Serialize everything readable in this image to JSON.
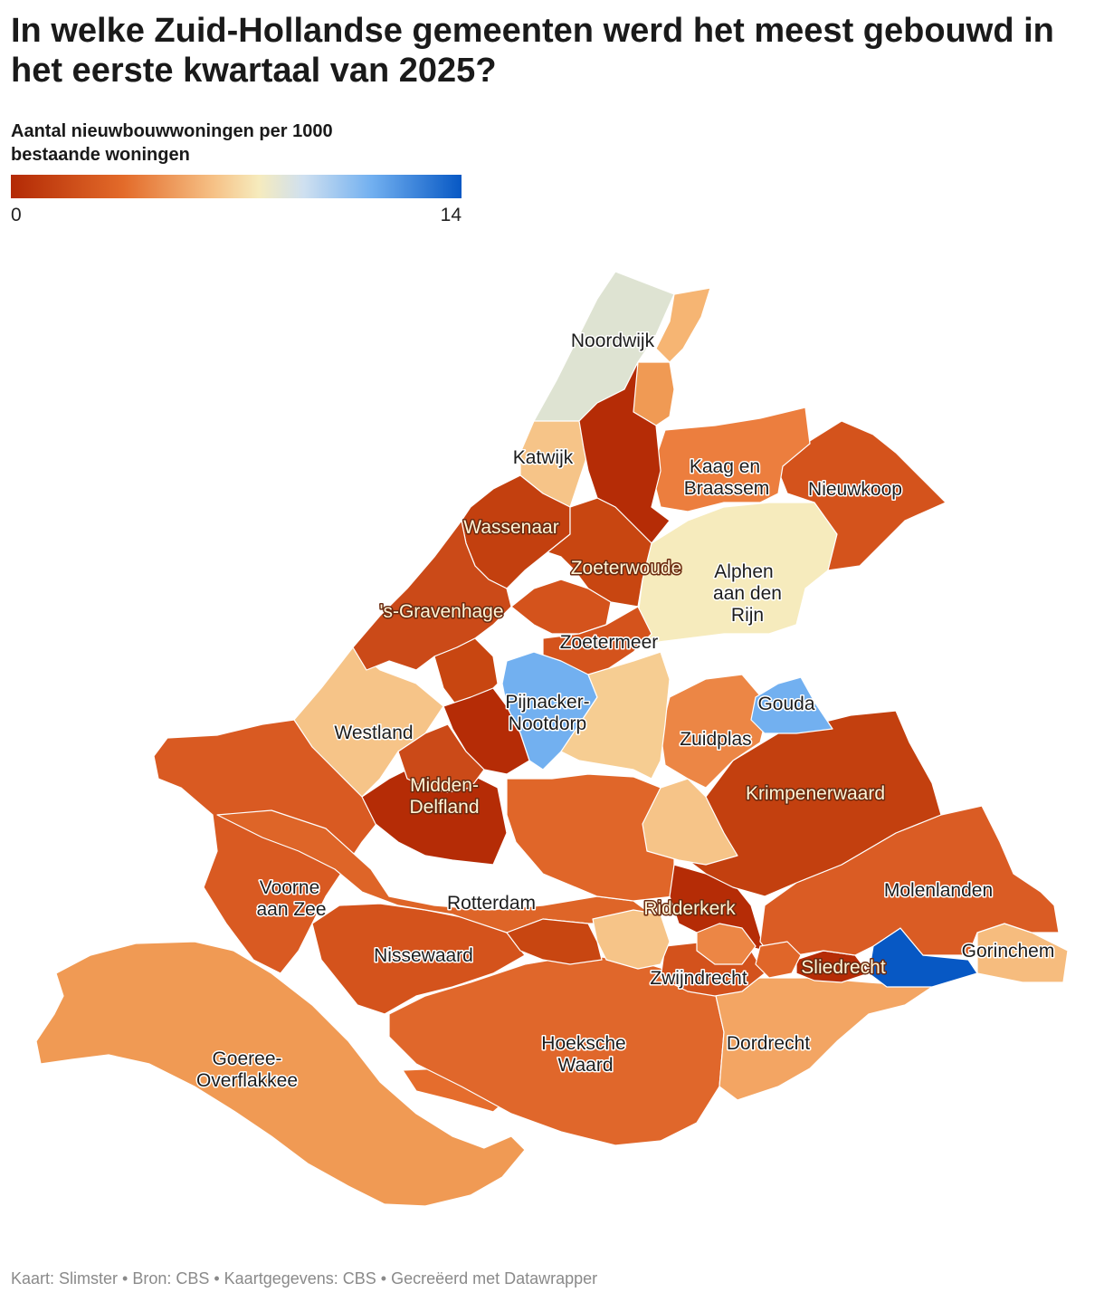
{
  "title": "In welke Zuid-Hollandse gemeenten werd het meest gebouwd in het eerste kwartaal van 2025?",
  "subtitle": "Aantal nieuwbouwwoningen per 1000 bestaande woningen",
  "legend": {
    "min_label": "0",
    "max_label": "14",
    "range": [
      0,
      14
    ],
    "colors": [
      "#b32a05",
      "#e36b2a",
      "#f6c186",
      "#f6ebbd",
      "#72b0f0",
      "#0758c4"
    ]
  },
  "map_labels": {
    "noordwijk": "Noordwijk",
    "katwijk": "Katwijk",
    "kaag_1": "Kaag en",
    "kaag_2": "Braassem",
    "nieuwkoop": "Nieuwkoop",
    "wassenaar": "Wassenaar",
    "zoeterwoude": "Zoeterwoude",
    "alphen_1": "Alphen",
    "alphen_2": "aan den",
    "alphen_3": "Rijn",
    "gravenhage": "'s-Gravenhage",
    "zoetermeer": "Zoetermeer",
    "pijnacker_1": "Pijnacker-",
    "pijnacker_2": "Nootdorp",
    "gouda": "Gouda",
    "westland": "Westland",
    "zuidplas": "Zuidplas",
    "midden_1": "Midden-",
    "midden_2": "Delfland",
    "krimpenerwaard": "Krimpenerwaard",
    "voorne_1": "Voorne",
    "voorne_2": "aan Zee",
    "rotterdam": "Rotterdam",
    "ridderkerk": "Ridderkerk",
    "molenlanden": "Molenlanden",
    "nissewaard": "Nissewaard",
    "gorinchem": "Gorinchem",
    "sliedrecht": "Sliedrecht",
    "zwijndrecht": "Zwijndrecht",
    "hoeksche_1": "Hoeksche",
    "hoeksche_2": "Waard",
    "dordrecht": "Dordrecht",
    "goeree_1": "Goeree-",
    "goeree_2": "Overflakkee"
  },
  "footer": "Kaart: Slimster • Bron: CBS • Kaartgegevens: CBS • Gecreëerd met Datawrapper"
}
